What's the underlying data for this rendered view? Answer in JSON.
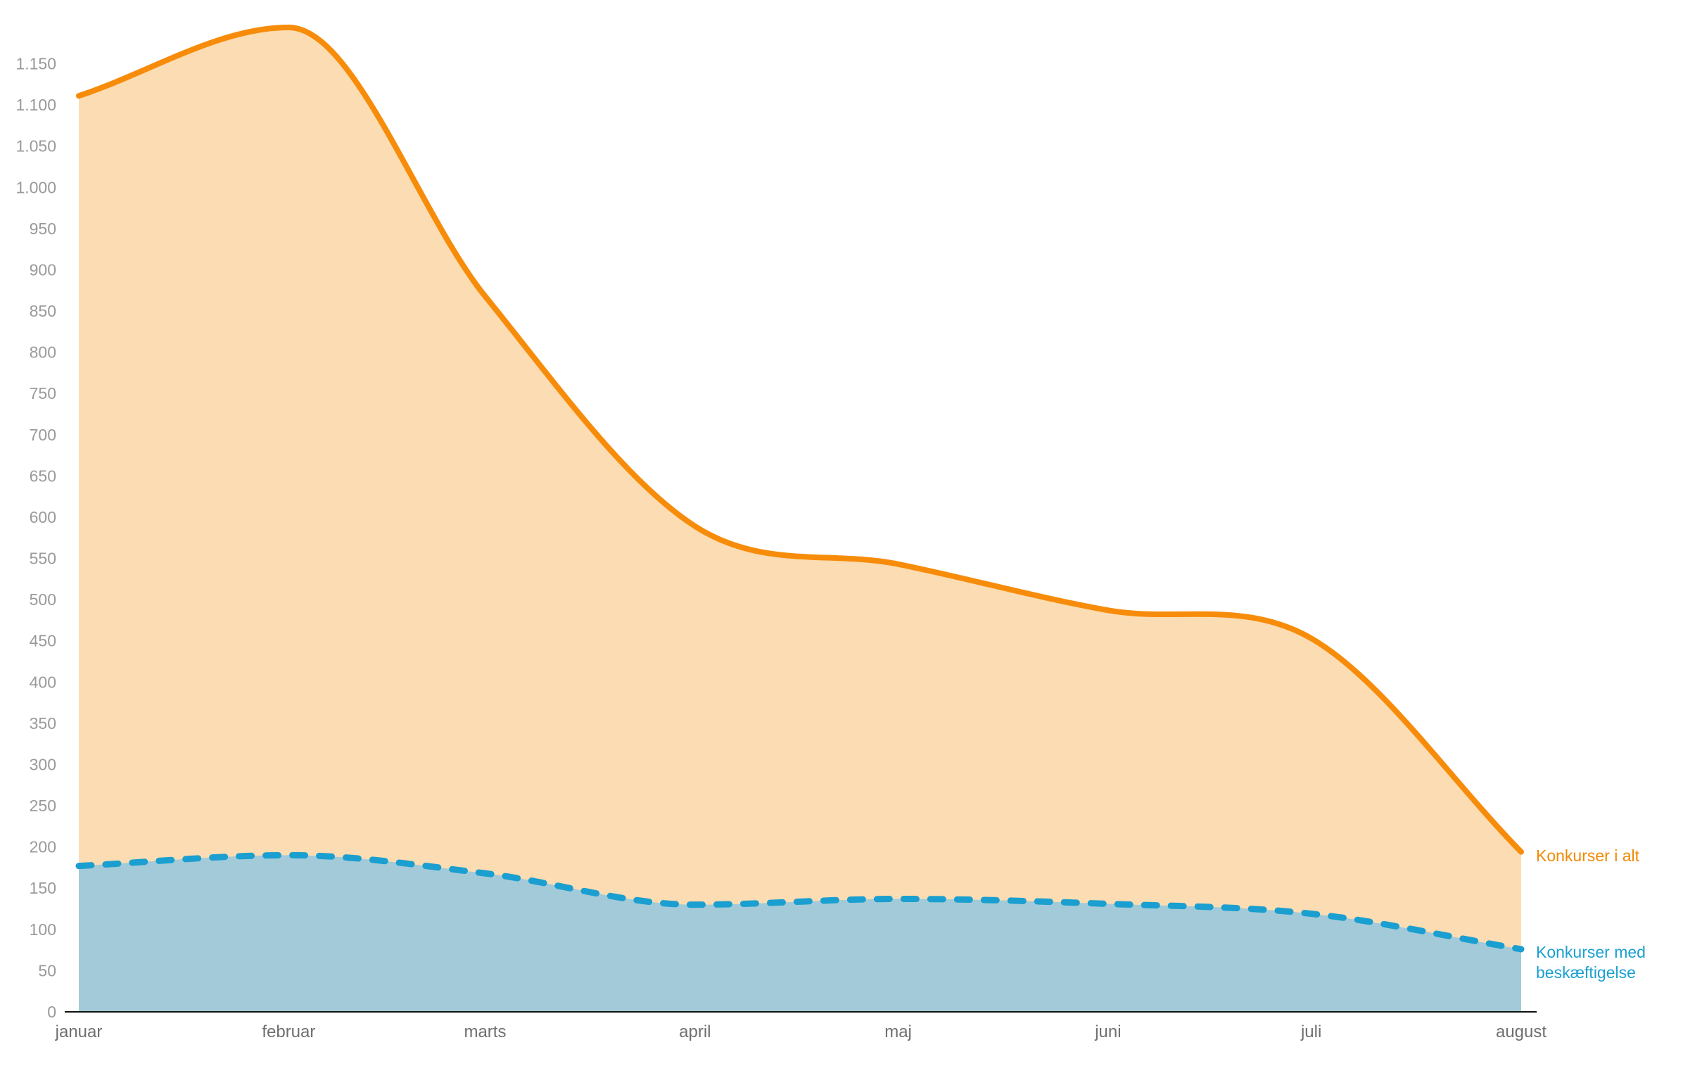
{
  "chart_data": {
    "type": "area",
    "title": "",
    "xlabel": "",
    "ylabel": "",
    "categories": [
      "januar",
      "februar",
      "marts",
      "april",
      "maj",
      "juni",
      "juli",
      "august"
    ],
    "x_days": [
      0,
      31,
      60,
      91,
      121,
      152,
      182,
      213
    ],
    "ylim": [
      0,
      1200
    ],
    "yticks": [
      0,
      50,
      100,
      150,
      200,
      250,
      300,
      350,
      400,
      450,
      500,
      550,
      600,
      650,
      700,
      750,
      800,
      850,
      900,
      950,
      1000,
      1050,
      1100,
      1150
    ],
    "ytick_labels": [
      "0",
      "50",
      "100",
      "150",
      "200",
      "250",
      "300",
      "350",
      "400",
      "450",
      "500",
      "550",
      "600",
      "650",
      "700",
      "750",
      "800",
      "850",
      "900",
      "950",
      "1.000",
      "1.050",
      "1.100",
      "1.150"
    ],
    "grid": false,
    "legend": "direct labels at right end of lines",
    "series": [
      {
        "name": "Konkurser i alt",
        "values": [
          1111,
          1194,
          868,
          589,
          543,
          487,
          453,
          194
        ],
        "line_color": "#f78c0a",
        "fill_color": "#fcdcb2",
        "dash": false
      },
      {
        "name": "Konkurser med beskæftigelse",
        "name_lines": [
          "Konkurser med",
          "beskæftigelse"
        ],
        "values": [
          177,
          190,
          168,
          130,
          137,
          131,
          119,
          76
        ],
        "line_color": "#1a9fd0",
        "fill_color": "#a3cad8",
        "dash": true
      }
    ]
  }
}
